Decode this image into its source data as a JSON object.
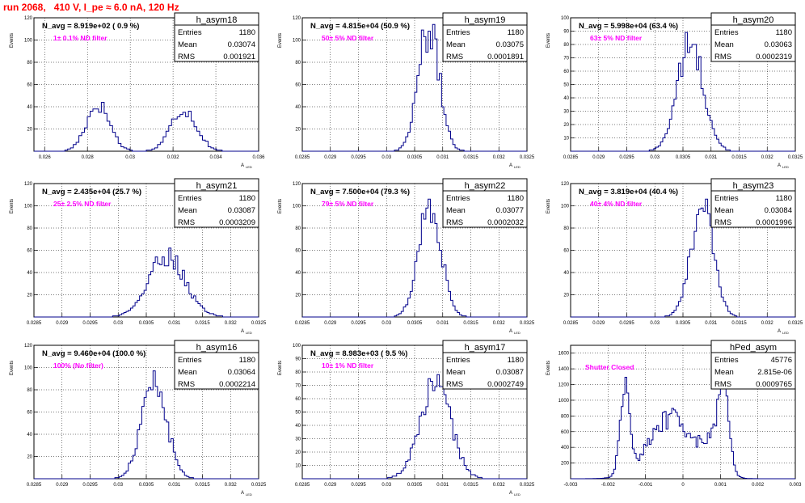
{
  "run_title": "run 2068,   410 V, I_pe ≈ 6.0 nA, 120 Hz",
  "colors": {
    "title": "#ff0000",
    "histogram": "#00008b",
    "annotation": "#ff00ff",
    "grid": "#000000"
  },
  "chart_data": [
    {
      "type": "histogram",
      "name": "h_asym18",
      "ylabel": "Events",
      "xlabel": "A_{LED}",
      "xlim": [
        0.0255,
        0.036
      ],
      "ylim": [
        0,
        120
      ],
      "xticks": [
        "0.026",
        "0.028",
        "0.03",
        "0.032",
        "0.034",
        "0.036"
      ],
      "yticks": [
        "20",
        "40",
        "60",
        "80",
        "100",
        "120"
      ],
      "xtick_values": [
        0.026,
        0.028,
        0.03,
        0.032,
        0.034,
        0.036
      ],
      "ytick_values": [
        20,
        40,
        60,
        80,
        100,
        120
      ],
      "n_avg": "N_avg = 8.919e+02 ( 0.9 %)",
      "filter": "1± 0.1% ND filter",
      "stats": {
        "entries_label": "Entries",
        "entries": "1180",
        "mean_label": "Mean",
        "mean": "0.03074",
        "rms_label": "RMS",
        "rms": "0.001921"
      },
      "peaks": [
        {
          "center": 0.0285,
          "sigma": 0.00055,
          "height": 42
        },
        {
          "center": 0.0325,
          "sigma": 0.0006,
          "height": 38
        }
      ],
      "bins": 80
    },
    {
      "type": "histogram",
      "name": "h_asym19",
      "ylabel": "Events",
      "xlabel": "A_{LED}",
      "xlim": [
        0.0285,
        0.0325
      ],
      "ylim": [
        0,
        120
      ],
      "xticks": [
        "0.0285",
        "0.029",
        "0.0295",
        "0.03",
        "0.0305",
        "0.031",
        "0.0315",
        "0.032",
        "0.0325"
      ],
      "yticks": [
        "20",
        "40",
        "60",
        "80",
        "100",
        "120"
      ],
      "xtick_values": [
        0.0285,
        0.029,
        0.0295,
        0.03,
        0.0305,
        0.031,
        0.0315,
        0.032,
        0.0325
      ],
      "ytick_values": [
        20,
        40,
        60,
        80,
        100,
        120
      ],
      "n_avg": "N_avg = 4.815e+04 (50.9 %)",
      "filter": "50± 5% ND filter",
      "stats": {
        "entries_label": "Entries",
        "entries": "1180",
        "mean_label": "Mean",
        "mean": "0.03075",
        "rms_label": "RMS",
        "rms": "0.0001891"
      },
      "peaks": [
        {
          "center": 0.03075,
          "sigma": 0.00019,
          "height": 110
        }
      ],
      "bins": 100
    },
    {
      "type": "histogram",
      "name": "h_asym20",
      "ylabel": "Events",
      "xlabel": "A_{LED}",
      "xlim": [
        0.0285,
        0.0325
      ],
      "ylim": [
        0,
        100
      ],
      "xticks": [
        "0.0285",
        "0.029",
        "0.0295",
        "0.03",
        "0.0305",
        "0.031",
        "0.0315",
        "0.032",
        "0.0325"
      ],
      "yticks": [
        "10",
        "20",
        "30",
        "40",
        "50",
        "60",
        "70",
        "80",
        "90",
        "100"
      ],
      "xtick_values": [
        0.0285,
        0.029,
        0.0295,
        0.03,
        0.0305,
        0.031,
        0.0315,
        0.032,
        0.0325
      ],
      "ytick_values": [
        10,
        20,
        30,
        40,
        50,
        60,
        70,
        80,
        90,
        100
      ],
      "n_avg": "N_avg = 5.998e+04 (63.4 %)",
      "filter": "63± 5% ND filter",
      "stats": {
        "entries_label": "Entries",
        "entries": "1180",
        "mean_label": "Mean",
        "mean": "0.03063",
        "rms_label": "RMS",
        "rms": "0.0002319"
      },
      "peaks": [
        {
          "center": 0.03063,
          "sigma": 0.00023,
          "height": 80
        }
      ],
      "bins": 100
    },
    {
      "type": "histogram",
      "name": "h_asym21",
      "ylabel": "Events",
      "xlabel": "A_{LED}",
      "xlim": [
        0.0285,
        0.0325
      ],
      "ylim": [
        0,
        120
      ],
      "xticks": [
        "0.0285",
        "0.029",
        "0.0295",
        "0.03",
        "0.0305",
        "0.031",
        "0.0315",
        "0.032",
        "0.0325"
      ],
      "yticks": [
        "20",
        "40",
        "60",
        "80",
        "100",
        "120"
      ],
      "xtick_values": [
        0.0285,
        0.029,
        0.0295,
        0.03,
        0.0305,
        0.031,
        0.0315,
        0.032,
        0.0325
      ],
      "ytick_values": [
        20,
        40,
        60,
        80,
        100,
        120
      ],
      "n_avg": "N_avg = 2.435e+04 (25.7 %)",
      "filter": "25± 2.5% ND filter",
      "stats": {
        "entries_label": "Entries",
        "entries": "1180",
        "mean_label": "Mean",
        "mean": "0.03087",
        "rms_label": "RMS",
        "rms": "0.0003209"
      },
      "peaks": [
        {
          "center": 0.03087,
          "sigma": 0.00032,
          "height": 55
        }
      ],
      "bins": 100
    },
    {
      "type": "histogram",
      "name": "h_asym22",
      "ylabel": "Events",
      "xlabel": "A_{LED}",
      "xlim": [
        0.0285,
        0.0325
      ],
      "ylim": [
        0,
        120
      ],
      "xticks": [
        "0.0285",
        "0.029",
        "0.0295",
        "0.03",
        "0.0305",
        "0.031",
        "0.0315",
        "0.032",
        "0.0325"
      ],
      "yticks": [
        "20",
        "40",
        "60",
        "80",
        "100",
        "120"
      ],
      "xtick_values": [
        0.0285,
        0.029,
        0.0295,
        0.03,
        0.0305,
        0.031,
        0.0315,
        0.032,
        0.0325
      ],
      "ytick_values": [
        20,
        40,
        60,
        80,
        100,
        120
      ],
      "n_avg": "N_avg = 7.500e+04 (79.3 %)",
      "filter": "79± 5% ND filter",
      "stats": {
        "entries_label": "Entries",
        "entries": "1180",
        "mean_label": "Mean",
        "mean": "0.03077",
        "rms_label": "RMS",
        "rms": "0.0002032"
      },
      "peaks": [
        {
          "center": 0.03077,
          "sigma": 0.0002,
          "height": 102
        }
      ],
      "bins": 100
    },
    {
      "type": "histogram",
      "name": "h_asym23",
      "ylabel": "Events",
      "xlabel": "A_{LED}",
      "xlim": [
        0.0285,
        0.0325
      ],
      "ylim": [
        0,
        120
      ],
      "xticks": [
        "0.0285",
        "0.029",
        "0.0295",
        "0.03",
        "0.0305",
        "0.031",
        "0.0315",
        "0.032",
        "0.0325"
      ],
      "yticks": [
        "20",
        "40",
        "60",
        "80",
        "100",
        "120"
      ],
      "xtick_values": [
        0.0285,
        0.029,
        0.0295,
        0.03,
        0.0305,
        0.031,
        0.0315,
        0.032,
        0.0325
      ],
      "ytick_values": [
        20,
        40,
        60,
        80,
        100,
        120
      ],
      "n_avg": "N_avg = 3.819e+04 (40.4 %)",
      "filter": "40± 4% ND filter",
      "stats": {
        "entries_label": "Entries",
        "entries": "1180",
        "mean_label": "Mean",
        "mean": "0.03084",
        "rms_label": "RMS",
        "rms": "0.0001996"
      },
      "peaks": [
        {
          "center": 0.03084,
          "sigma": 0.0002,
          "height": 100
        }
      ],
      "bins": 100
    },
    {
      "type": "histogram",
      "name": "h_asym16",
      "ylabel": "Events",
      "xlabel": "A_{LED}",
      "xlim": [
        0.0285,
        0.0325
      ],
      "ylim": [
        0,
        120
      ],
      "xticks": [
        "0.0285",
        "0.029",
        "0.0295",
        "0.03",
        "0.0305",
        "0.031",
        "0.0315",
        "0.032",
        "0.0325"
      ],
      "yticks": [
        "20",
        "40",
        "60",
        "80",
        "100",
        "120"
      ],
      "xtick_values": [
        0.0285,
        0.029,
        0.0295,
        0.03,
        0.0305,
        0.031,
        0.0315,
        0.032,
        0.0325
      ],
      "ytick_values": [
        20,
        40,
        60,
        80,
        100,
        120
      ],
      "n_avg": "N_avg = 9.460e+04 (100.0 %)",
      "filter": "100% (No filter)",
      "stats": {
        "entries_label": "Entries",
        "entries": "1180",
        "mean_label": "Mean",
        "mean": "0.03064",
        "rms_label": "RMS",
        "rms": "0.0002214"
      },
      "peaks": [
        {
          "center": 0.03064,
          "sigma": 0.00022,
          "height": 88
        }
      ],
      "bins": 100
    },
    {
      "type": "histogram",
      "name": "h_asym17",
      "ylabel": "Events",
      "xlabel": "A_{LED}",
      "xlim": [
        0.0285,
        0.0325
      ],
      "ylim": [
        0,
        100
      ],
      "xticks": [
        "0.0285",
        "0.029",
        "0.0295",
        "0.03",
        "0.0305",
        "0.031",
        "0.0315",
        "0.032",
        "0.0325"
      ],
      "yticks": [
        "10",
        "20",
        "30",
        "40",
        "50",
        "60",
        "70",
        "80",
        "90",
        "100"
      ],
      "xtick_values": [
        0.0285,
        0.029,
        0.0295,
        0.03,
        0.0305,
        0.031,
        0.0315,
        0.032,
        0.0325
      ],
      "ytick_values": [
        10,
        20,
        30,
        40,
        50,
        60,
        70,
        80,
        90,
        100
      ],
      "n_avg": "N_avg = 8.983e+03 ( 9.5 %)",
      "filter": "10± 1% ND filter",
      "stats": {
        "entries_label": "Entries",
        "entries": "1180",
        "mean_label": "Mean",
        "mean": "0.03087",
        "rms_label": "RMS",
        "rms": "0.0002749"
      },
      "peaks": [
        {
          "center": 0.03087,
          "sigma": 0.00027,
          "height": 72
        }
      ],
      "bins": 100
    },
    {
      "type": "histogram",
      "name": "hPed_asym",
      "ylabel": "Events",
      "xlabel": "",
      "xlim": [
        -0.003,
        0.003
      ],
      "ylim": [
        0,
        1700
      ],
      "xticks": [
        "-0.003",
        "-0.002",
        "-0.001",
        "0",
        "0.001",
        "0.002",
        "0.003"
      ],
      "yticks": [
        "200",
        "400",
        "600",
        "800",
        "1000",
        "1200",
        "1400",
        "1600"
      ],
      "xtick_values": [
        -0.003,
        -0.002,
        -0.001,
        0,
        0.001,
        0.002,
        0.003
      ],
      "ytick_values": [
        200,
        400,
        600,
        800,
        1000,
        1200,
        1400,
        1600
      ],
      "n_avg": "",
      "filter": "Shutter Closed",
      "stats": {
        "entries_label": "Entries",
        "entries": "45776",
        "mean_label": "Mean",
        "mean": "2.815e-06",
        "rms_label": "RMS",
        "rms": "0.0009765"
      },
      "peaks": [
        {
          "center": -0.00155,
          "sigma": 0.00012,
          "height": 1250
        },
        {
          "center": -0.0003,
          "sigma": 0.0006,
          "height": 780
        },
        {
          "center": 0.00085,
          "sigma": 0.00025,
          "height": 400
        },
        {
          "center": 0.0011,
          "sigma": 0.00013,
          "height": 1150
        }
      ],
      "bins": 120
    }
  ]
}
